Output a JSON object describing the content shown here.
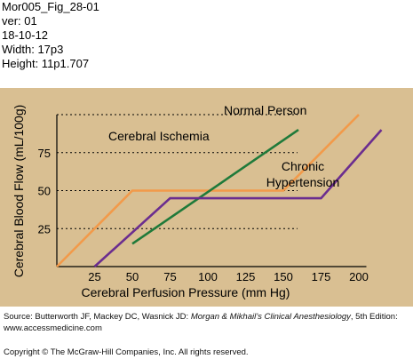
{
  "meta_lines": [
    "Mor005_Fig_28-01",
    "ver: 01",
    "18-10-12",
    "Width: 17p3",
    "Height: 11p1.707"
  ],
  "source": {
    "prefix": "Source: Butterworth JF, Mackey DC, Wasnick JD: ",
    "title": "Morgan & Mikhail’s Clinical Anesthesiology",
    "suffix": ", 5th Edition: www.accessmedicine.com"
  },
  "copyright": "Copyright © The McGraw-Hill Companies, Inc. All rights reserved.",
  "colors": {
    "panel_bg": "#d9bf92",
    "normal": "#f29a4a",
    "ischemia": "#1f7a3a",
    "hypertension": "#6b2d8f",
    "axis": "#000000"
  },
  "chart_data": {
    "type": "line",
    "title": "",
    "xlabel": "Cerebral Perfusion Pressure (mm Hg)",
    "ylabel": "Cerebral Blood Flow (mL/100g)",
    "xlim": [
      0,
      225
    ],
    "ylim": [
      0,
      100
    ],
    "x_ticks": [
      25,
      50,
      75,
      100,
      125,
      150,
      175,
      200
    ],
    "y_ticks": [
      25,
      50,
      75
    ],
    "grid": "dotted horizontal at 25, 50, 75, 100",
    "legend": "inline labels",
    "series": [
      {
        "name": "Normal Person",
        "color_key": "normal",
        "x": [
          0,
          50,
          150,
          200
        ],
        "y": [
          0,
          50,
          50,
          100
        ]
      },
      {
        "name": "Cerebral Ischemia",
        "color_key": "ischemia",
        "x": [
          50,
          160
        ],
        "y": [
          15,
          90
        ]
      },
      {
        "name": "Chronic\nHypertension",
        "color_key": "hypertension",
        "x": [
          25,
          75,
          175,
          215
        ],
        "y": [
          0,
          45,
          45,
          90
        ]
      }
    ]
  }
}
